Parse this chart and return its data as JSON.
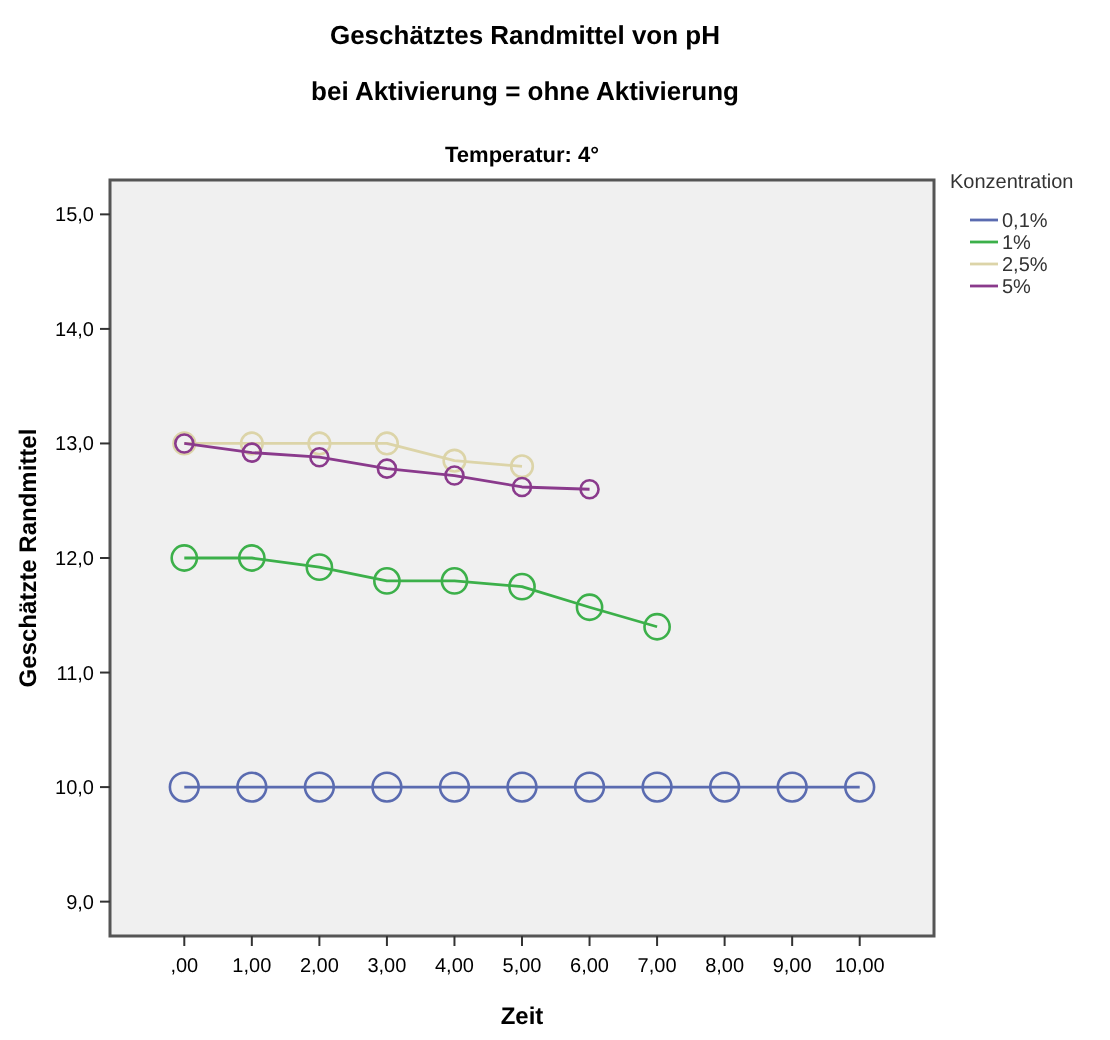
{
  "chart_data": {
    "type": "line",
    "title": "Geschätztes Randmittel von pH",
    "subtitle": "bei Aktivierung = ohne Aktivierung",
    "annotations": [
      "Temperatur: 4°"
    ],
    "xlabel": "Zeit",
    "ylabel": "Geschätzte Randmittel",
    "legend_title": "Konzentration",
    "legend": "right",
    "marker": "circle",
    "grid": false,
    "xlim": [
      -1.1,
      11.1
    ],
    "ylim": [
      8.7,
      15.3
    ],
    "xticks": [
      {
        "value": 0,
        "label": ",00"
      },
      {
        "value": 1,
        "label": "1,00"
      },
      {
        "value": 2,
        "label": "2,00"
      },
      {
        "value": 3,
        "label": "3,00"
      },
      {
        "value": 4,
        "label": "4,00"
      },
      {
        "value": 5,
        "label": "5,00"
      },
      {
        "value": 6,
        "label": "6,00"
      },
      {
        "value": 7,
        "label": "7,00"
      },
      {
        "value": 8,
        "label": "8,00"
      },
      {
        "value": 9,
        "label": "9,00"
      },
      {
        "value": 10,
        "label": "10,00"
      }
    ],
    "yticks": [
      {
        "value": 9,
        "label": "9,0"
      },
      {
        "value": 10,
        "label": "10,0"
      },
      {
        "value": 11,
        "label": "11,0"
      },
      {
        "value": 12,
        "label": "12,0"
      },
      {
        "value": 13,
        "label": "13,0"
      },
      {
        "value": 14,
        "label": "14,0"
      },
      {
        "value": 15,
        "label": "15,0"
      }
    ],
    "series": [
      {
        "name": "0,1%",
        "color": "#5a6bb0",
        "x": [
          0,
          1,
          2,
          3,
          4,
          5,
          6,
          7,
          8,
          9,
          10
        ],
        "values": [
          10,
          10,
          10,
          10,
          10,
          10,
          10,
          10,
          10,
          10,
          10
        ]
      },
      {
        "name": "1%",
        "color": "#3cb04a",
        "x": [
          0,
          1,
          2,
          3,
          4,
          5,
          6,
          7
        ],
        "values": [
          12.0,
          12.0,
          11.92,
          11.8,
          11.8,
          11.75,
          11.57,
          11.4
        ]
      },
      {
        "name": "2,5%",
        "color": "#dcd4a8",
        "x": [
          0,
          1,
          2,
          3,
          4,
          5
        ],
        "values": [
          13.0,
          13.0,
          13.0,
          13.0,
          12.85,
          12.8
        ]
      },
      {
        "name": "5%",
        "color": "#8a3a8c",
        "x": [
          0,
          1,
          2,
          3,
          4,
          5,
          6
        ],
        "values": [
          13.0,
          12.92,
          12.88,
          12.78,
          12.72,
          12.62,
          12.6
        ]
      }
    ]
  }
}
